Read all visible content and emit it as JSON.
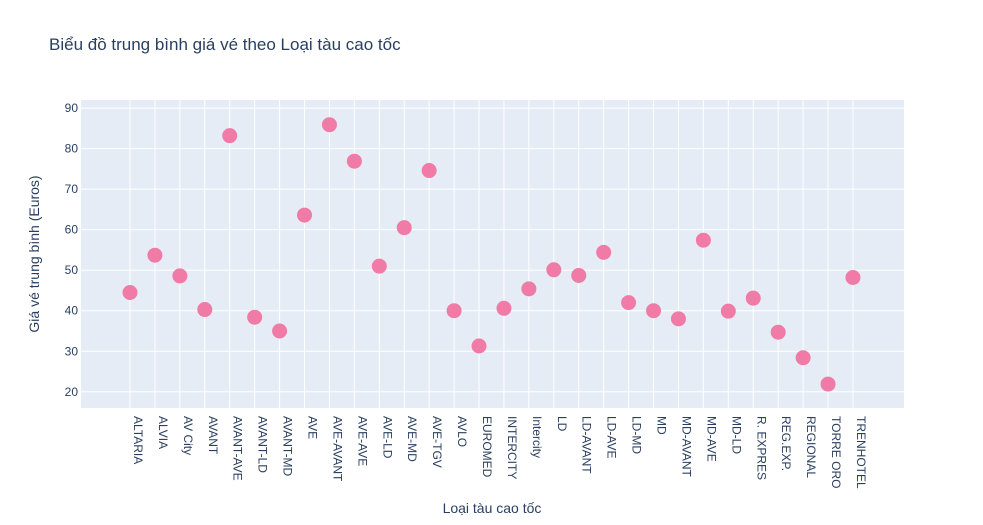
{
  "chart_data": {
    "type": "scatter",
    "title": "Biểu đồ trung bình giá vé theo Loại tàu cao tốc",
    "xlabel": "Loại tàu cao tốc",
    "ylabel": "Giá vé trung bình (Euros)",
    "ylim": [
      16,
      92
    ],
    "yticks": [
      20,
      30,
      40,
      50,
      60,
      70,
      80,
      90
    ],
    "grid": true,
    "legend": "none",
    "marker_color": "#f07ba6",
    "plot_background": "#e5ecf6",
    "categories": [
      "ALTARIA",
      "ALVIA",
      "AV City",
      "AVANT",
      "AVANT-AVE",
      "AVANT-LD",
      "AVANT-MD",
      "AVE",
      "AVE-AVANT",
      "AVE-AVE",
      "AVE-LD",
      "AVE-MD",
      "AVE-TGV",
      "AVLO",
      "EUROMED",
      "INTERCITY",
      "Intercity",
      "LD",
      "LD-AVANT",
      "LD-AVE",
      "LD-MD",
      "MD",
      "MD-AVANT",
      "MD-AVE",
      "MD-LD",
      "R. EXPRES",
      "REG.EXP.",
      "REGIONAL",
      "TORRE ORO",
      "TRENHOTEL"
    ],
    "values": [
      44.5,
      53.7,
      48.6,
      40.3,
      83.2,
      38.4,
      35.0,
      63.6,
      85.9,
      76.9,
      51.0,
      60.5,
      74.6,
      40.0,
      31.3,
      40.6,
      45.4,
      50.1,
      48.7,
      54.4,
      42.0,
      40.0,
      38.0,
      57.4,
      39.9,
      43.1,
      34.7,
      28.4,
      21.9,
      48.2
    ]
  }
}
